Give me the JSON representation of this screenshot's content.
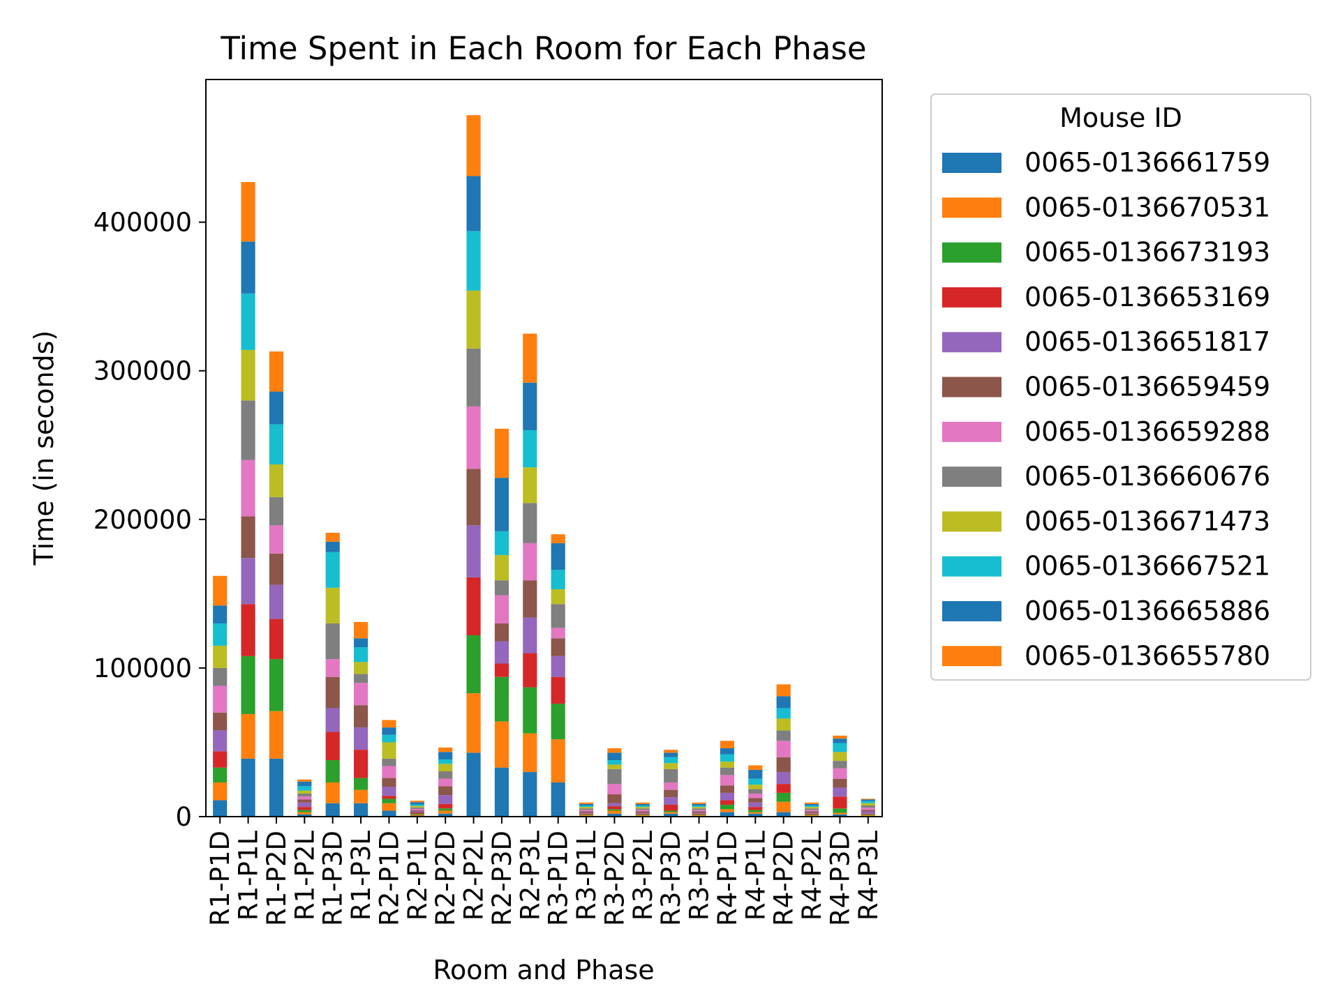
{
  "chart_data": {
    "type": "bar",
    "stacked": true,
    "title": "Time Spent in Each Room for Each Phase",
    "xlabel": "Room and Phase",
    "ylabel": "Time (in seconds)",
    "ylim": [
      0,
      496000
    ],
    "yticks": [
      0,
      100000,
      200000,
      300000,
      400000
    ],
    "grid": false,
    "legend": {
      "title": "Mouse ID",
      "placement": "outside-right-top"
    },
    "categories": [
      "R1-P1D",
      "R1-P1L",
      "R1-P2D",
      "R1-P2L",
      "R1-P3D",
      "R1-P3L",
      "R2-P1D",
      "R2-P1L",
      "R2-P2D",
      "R2-P2L",
      "R2-P3D",
      "R2-P3L",
      "R3-P1D",
      "R3-P1L",
      "R3-P2D",
      "R3-P2L",
      "R3-P3D",
      "R3-P3L",
      "R4-P1D",
      "R4-P1L",
      "R4-P2D",
      "R4-P2L",
      "R4-P3D",
      "R4-P3L"
    ],
    "series": [
      {
        "name": "0065-0136661759",
        "color": "#1f77b4",
        "values": [
          11000,
          39000,
          39000,
          1500,
          9000,
          9000,
          4000,
          700,
          2000,
          43000,
          33000,
          30000,
          23000,
          500,
          2000,
          500,
          2000,
          500,
          3000,
          2000,
          3000,
          500,
          1500,
          500
        ]
      },
      {
        "name": "0065-0136670531",
        "color": "#ff7f0e",
        "values": [
          12000,
          30000,
          32000,
          1500,
          14000,
          9000,
          5000,
          700,
          2000,
          40000,
          31000,
          26000,
          29000,
          500,
          2000,
          500,
          1000,
          500,
          2000,
          1000,
          7000,
          500,
          1000,
          500
        ]
      },
      {
        "name": "0065-0136673193",
        "color": "#2ca02c",
        "values": [
          10000,
          39000,
          35000,
          1500,
          15000,
          8000,
          3000,
          700,
          1500,
          39000,
          30000,
          31000,
          24000,
          500,
          1000,
          500,
          1000,
          500,
          3000,
          1500,
          6000,
          500,
          3000,
          500
        ]
      },
      {
        "name": "0065-0136653169",
        "color": "#d62728",
        "values": [
          11000,
          35000,
          27000,
          2000,
          19000,
          19000,
          2000,
          700,
          3000,
          39000,
          9000,
          23000,
          18000,
          500,
          2000,
          500,
          4000,
          500,
          3000,
          2000,
          6000,
          500,
          8000,
          500
        ]
      },
      {
        "name": "0065-0136651817",
        "color": "#9467bd",
        "values": [
          14000,
          31000,
          23000,
          3000,
          16000,
          15000,
          6000,
          700,
          6000,
          35000,
          15000,
          24000,
          14000,
          500,
          2000,
          500,
          5000,
          500,
          5000,
          3000,
          8000,
          500,
          6000,
          1500
        ]
      },
      {
        "name": "0065-0136659459",
        "color": "#8c564b",
        "values": [
          12000,
          28000,
          21000,
          2000,
          21000,
          15000,
          6000,
          700,
          6000,
          38000,
          12000,
          25000,
          12000,
          1000,
          6000,
          1000,
          5000,
          1000,
          5000,
          3000,
          10000,
          1000,
          6000,
          1000
        ]
      },
      {
        "name": "0065-0136659288",
        "color": "#e377c2",
        "values": [
          18000,
          38000,
          19000,
          2000,
          12000,
          15000,
          8000,
          1000,
          5000,
          42000,
          19000,
          25000,
          7000,
          1000,
          7000,
          1000,
          5000,
          1000,
          7000,
          3000,
          11000,
          1000,
          7000,
          1500
        ]
      },
      {
        "name": "0065-0136660676",
        "color": "#7f7f7f",
        "values": [
          12000,
          40000,
          19000,
          2000,
          24000,
          6000,
          5000,
          1000,
          5000,
          39000,
          10000,
          27000,
          16000,
          1000,
          10000,
          1000,
          9000,
          1000,
          5000,
          3000,
          7000,
          1000,
          5000,
          1500
        ]
      },
      {
        "name": "0065-0136671473",
        "color": "#bcbd22",
        "values": [
          15000,
          34000,
          22000,
          2000,
          24000,
          8000,
          11000,
          1000,
          5000,
          39000,
          17000,
          24000,
          10000,
          1000,
          3000,
          1000,
          4000,
          1000,
          4000,
          3000,
          8000,
          1000,
          6000,
          1500
        ]
      },
      {
        "name": "0065-0136667521",
        "color": "#17becf",
        "values": [
          15000,
          38000,
          27000,
          3000,
          24000,
          10000,
          5000,
          1000,
          3000,
          40000,
          16000,
          25000,
          13000,
          1000,
          3000,
          1000,
          4000,
          1000,
          5000,
          4000,
          7000,
          1000,
          6000,
          1500
        ]
      },
      {
        "name": "0065-0136665886",
        "color": "#1f77b4",
        "values": [
          12000,
          35000,
          22000,
          3000,
          7000,
          6000,
          5000,
          1500,
          5000,
          37000,
          36000,
          32000,
          18000,
          1000,
          5000,
          1000,
          3000,
          1000,
          4000,
          6000,
          8000,
          1000,
          3000,
          1000
        ]
      },
      {
        "name": "0065-0136655780",
        "color": "#ff7f0e",
        "values": [
          20000,
          40000,
          27000,
          1500,
          6000,
          11000,
          5000,
          1000,
          3000,
          41000,
          33000,
          33000,
          6000,
          1000,
          3000,
          1000,
          2000,
          1000,
          5000,
          3000,
          8000,
          1000,
          2000,
          500
        ]
      }
    ]
  }
}
